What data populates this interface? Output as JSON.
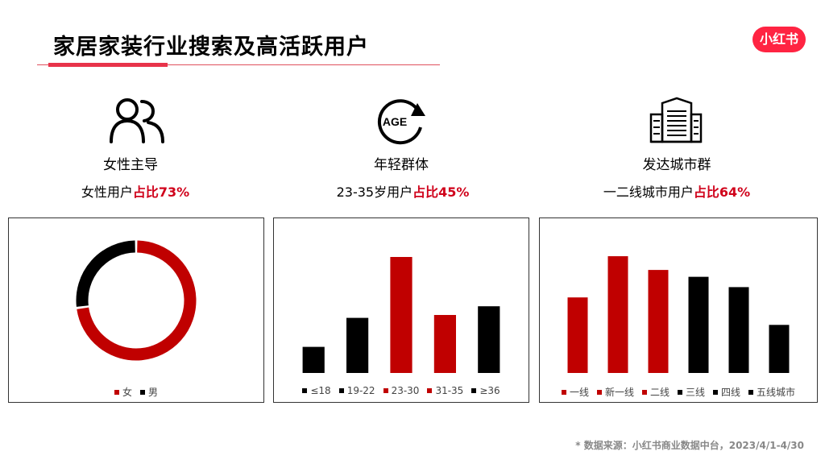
{
  "header": {
    "title": "家居家装行业搜索及高活跃用户",
    "brand_logo": "小红书"
  },
  "sections": [
    {
      "icon": "people-icon",
      "heading": "女性主导",
      "stat_prefix": "女性用户",
      "stat_highlight": "占比73%"
    },
    {
      "icon": "age-icon",
      "age_text": "AGE",
      "heading": "年轻群体",
      "stat_prefix": "23-35岁用户",
      "stat_highlight": "占比45%"
    },
    {
      "icon": "building-icon",
      "heading": "发达城市群",
      "stat_prefix": "一二线城市用户",
      "stat_highlight": "占比64%"
    }
  ],
  "colors": {
    "red": "#c00000",
    "black": "#000000",
    "highlight": "#d0021b",
    "brand": "#ff2442"
  },
  "chart_data": [
    {
      "type": "pie",
      "variant": "donut",
      "categories": [
        "女",
        "男"
      ],
      "values": [
        73,
        27
      ],
      "colors": [
        "#c00000",
        "#000000"
      ],
      "legend": "bottom"
    },
    {
      "type": "bar",
      "categories": [
        "≤18",
        "19-22",
        "23-30",
        "31-35",
        "≥36"
      ],
      "values": [
        9,
        19,
        40,
        20,
        23
      ],
      "colors": [
        "#000000",
        "#000000",
        "#c00000",
        "#c00000",
        "#000000"
      ],
      "legend": "bottom",
      "ylim": [
        0,
        45
      ]
    },
    {
      "type": "bar",
      "categories": [
        "一线",
        "新一线",
        "二线",
        "三线",
        "四线",
        "五线城市"
      ],
      "values": [
        22,
        34,
        30,
        28,
        25,
        14
      ],
      "colors": [
        "#c00000",
        "#c00000",
        "#c00000",
        "#000000",
        "#000000",
        "#000000"
      ],
      "legend": "bottom",
      "ylim": [
        0,
        38
      ]
    }
  ],
  "footnote": "* 数据来源：小红书商业数据中台，2023/4/1-4/30"
}
